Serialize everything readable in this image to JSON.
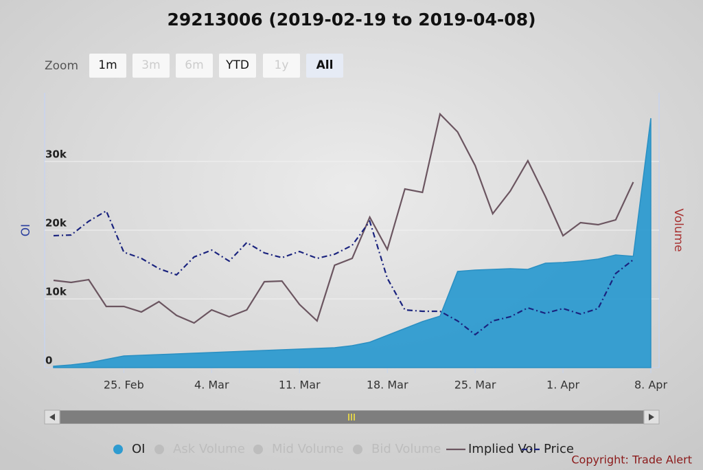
{
  "chart_data": {
    "type": "stock",
    "title": "29213006 (2019-02-19 to 2019-04-08)",
    "zoom": {
      "label": "Zoom",
      "buttons": [
        {
          "text": "1m",
          "state": "normal"
        },
        {
          "text": "3m",
          "state": "disabled"
        },
        {
          "text": "6m",
          "state": "disabled"
        },
        {
          "text": "YTD",
          "state": "normal"
        },
        {
          "text": "1y",
          "state": "disabled"
        },
        {
          "text": "All",
          "state": "selected"
        }
      ]
    },
    "y_axis_label": "OI",
    "y2_axis_label": "Volume",
    "categories": [
      "2019-02-19",
      "2019-02-20",
      "2019-02-21",
      "2019-02-22",
      "2019-02-25",
      "2019-02-26",
      "2019-02-27",
      "2019-02-28",
      "2019-03-01",
      "2019-03-04",
      "2019-03-05",
      "2019-03-06",
      "2019-03-07",
      "2019-03-08",
      "2019-03-11",
      "2019-03-12",
      "2019-03-13",
      "2019-03-14",
      "2019-03-15",
      "2019-03-18",
      "2019-03-19",
      "2019-03-20",
      "2019-03-21",
      "2019-03-22",
      "2019-03-25",
      "2019-03-26",
      "2019-03-27",
      "2019-03-28",
      "2019-03-29",
      "2019-04-01",
      "2019-04-02",
      "2019-04-03",
      "2019-04-04",
      "2019-04-05",
      "2019-04-08"
    ],
    "xticks": [
      {
        "value": "2019-02-25",
        "label": "25. Feb"
      },
      {
        "value": "2019-03-04",
        "label": "4. Mar"
      },
      {
        "value": "2019-03-11",
        "label": "11. Mar"
      },
      {
        "value": "2019-03-18",
        "label": "18. Mar"
      },
      {
        "value": "2019-03-25",
        "label": "25. Mar"
      },
      {
        "value": "2019-04-01",
        "label": "1. Apr"
      },
      {
        "value": "2019-04-08",
        "label": "8. Apr"
      }
    ],
    "ylim": [
      0,
      40000
    ],
    "yticks": [
      0,
      {
        "value": 10000,
        "label": "10k"
      },
      {
        "value": 20000,
        "label": "20k"
      },
      {
        "value": 30000,
        "label": "30k"
      }
    ],
    "grid": true,
    "series": [
      {
        "name": "OI",
        "type": "area",
        "color": "#2e9bd0",
        "visible": true,
        "values": [
          200,
          400,
          700,
          1200,
          1700,
          1800,
          1900,
          2000,
          2100,
          2200,
          2300,
          2400,
          2500,
          2600,
          2700,
          2800,
          2900,
          3200,
          3700,
          4700,
          5700,
          6700,
          7500,
          14000,
          14200,
          14300,
          14400,
          14300,
          15200,
          15300,
          15500,
          15800,
          16400,
          16200,
          36300
        ]
      },
      {
        "name": "Ask Volume",
        "visible": false
      },
      {
        "name": "Mid Volume",
        "visible": false
      },
      {
        "name": "Bid Volume",
        "visible": false
      },
      {
        "name": "Implied Vol",
        "type": "line",
        "color": "#6b5560",
        "visible": true,
        "values": [
          12700,
          12400,
          12800,
          8900,
          8900,
          8100,
          9600,
          7600,
          6500,
          8400,
          7400,
          8400,
          12500,
          12600,
          9200,
          6800,
          14900,
          15900,
          21900,
          17200,
          26000,
          25500,
          36900,
          34300,
          29400,
          22400,
          25700,
          30100,
          24900,
          19200,
          21100,
          20800,
          21500,
          27000,
          null
        ]
      },
      {
        "name": "Price",
        "type": "dashdot",
        "color": "#1a237e",
        "visible": true,
        "values": [
          19200,
          19300,
          21300,
          22800,
          16800,
          15900,
          14400,
          13500,
          16100,
          17100,
          15500,
          18200,
          16700,
          16000,
          16900,
          15900,
          16500,
          17800,
          21300,
          13000,
          8400,
          8200,
          8200,
          6800,
          4800,
          6800,
          7400,
          8700,
          7900,
          8600,
          7800,
          8600,
          13700,
          15700,
          null
        ]
      }
    ],
    "credits": "Copyright: Trade Alert"
  }
}
